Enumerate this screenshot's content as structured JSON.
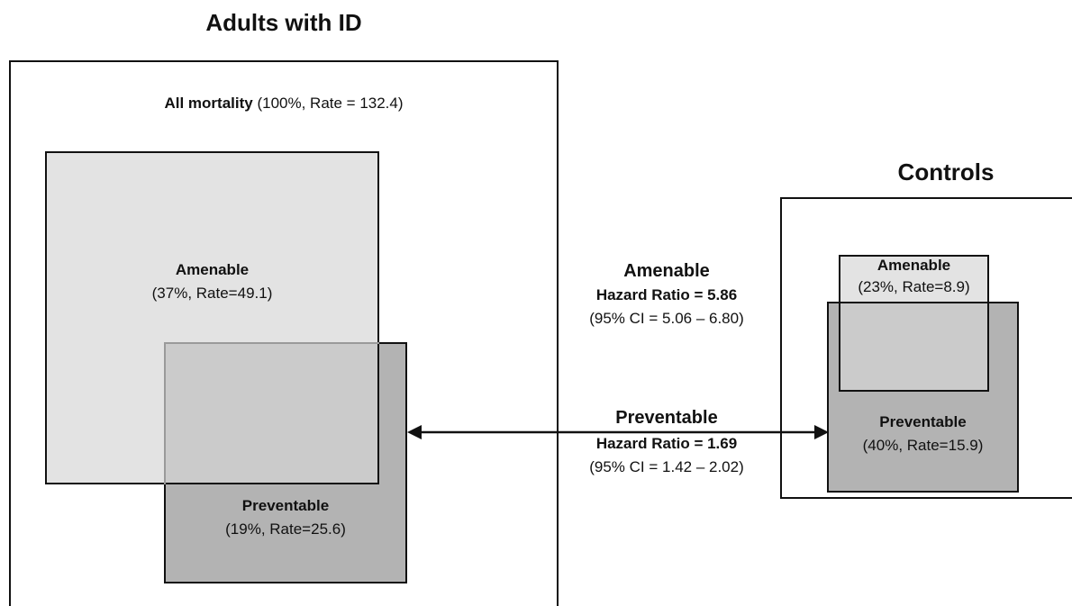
{
  "titles": {
    "left": "Adults with ID",
    "right": "Controls"
  },
  "left_group": {
    "all_mortality": {
      "label": "All mortality",
      "detail": "(100%, Rate = 132.4)"
    },
    "amenable": {
      "label": "Amenable",
      "detail": "(37%, Rate=49.1)"
    },
    "preventable": {
      "label": "Preventable",
      "detail": "(19%, Rate=25.6)"
    }
  },
  "right_group": {
    "amenable": {
      "label": "Amenable",
      "detail": "(23%, Rate=8.9)"
    },
    "preventable": {
      "label": "Preventable",
      "detail": "(40%, Rate=15.9)"
    }
  },
  "comparisons": {
    "amenable": {
      "label": "Amenable",
      "hazard_ratio": "Hazard Ratio = 5.86",
      "ci": "(95% CI = 5.06 – 6.80)"
    },
    "preventable": {
      "label": "Preventable",
      "hazard_ratio": "Hazard Ratio = 1.69",
      "ci": "(95% CI = 1.42 – 2.02)"
    }
  },
  "colors": {
    "amenable_fill": "#e3e3e3",
    "preventable_fill": "#b3b3b3",
    "overlap_fill": "#cbcbcb",
    "stroke": "#111111"
  }
}
